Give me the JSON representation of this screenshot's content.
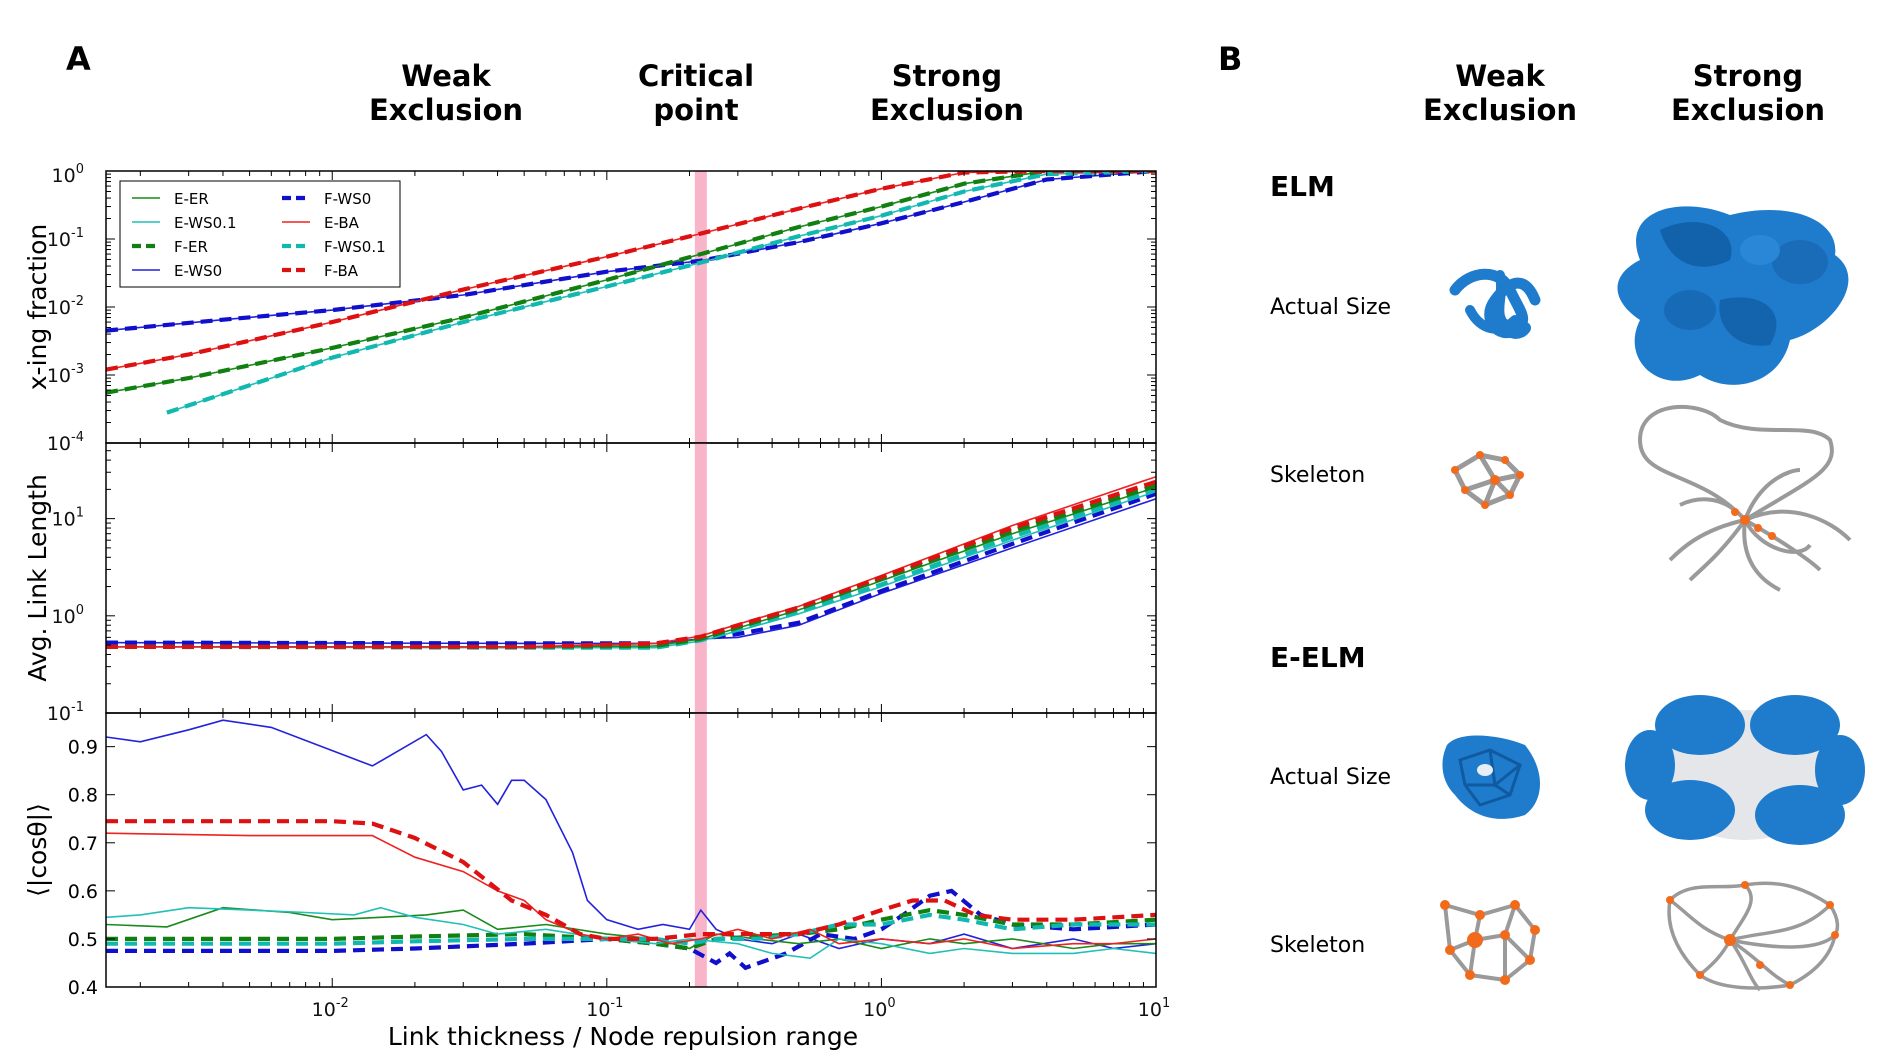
{
  "panel_labels": {
    "a": "A",
    "b": "B"
  },
  "regimes": [
    {
      "line1": "Weak",
      "line2": "Exclusion"
    },
    {
      "line1": "Critical",
      "line2": "point"
    },
    {
      "line1": "Strong",
      "line2": "Exclusion"
    }
  ],
  "panel_b": {
    "column_headers": [
      {
        "line1": "Weak",
        "line2": "Exclusion"
      },
      {
        "line1": "Strong",
        "line2": "Exclusion"
      }
    ],
    "sections": [
      {
        "title": "ELM",
        "rows": [
          "Actual Size",
          "Skeleton"
        ]
      },
      {
        "title": "E-ELM",
        "rows": [
          "Actual Size",
          "Skeleton"
        ]
      }
    ],
    "colors": {
      "tube": "#1f7ccc",
      "skeleton": "#9a9a9a",
      "node": "#f26a1b"
    }
  },
  "critical_point_x": 0.22,
  "chart_data": [
    {
      "type": "line",
      "ylabel": "x-ing fraction",
      "xscale": "log",
      "yscale": "log",
      "xlim": [
        0.0015,
        10
      ],
      "ylim": [
        0.0001,
        1
      ],
      "ytick_labels": [
        {
          "v": 1,
          "base": "10",
          "exp": "0"
        },
        {
          "v": 0.1,
          "base": "10",
          "exp": "-1"
        },
        {
          "v": 0.01,
          "base": "10",
          "exp": "-2"
        },
        {
          "v": 0.001,
          "base": "10",
          "exp": "-3"
        },
        {
          "v": 0.0001,
          "base": "10",
          "exp": "-4"
        }
      ],
      "legend": {
        "placement": "top-left",
        "entries": [
          "E-ER",
          "E-WS0.1",
          "F-ER",
          "E-WS0",
          "F-WS0",
          "E-BA",
          "F-WS0.1",
          "F-BA"
        ]
      },
      "series": [
        {
          "name": "E-WS0",
          "color": "#2222dd",
          "dashed": false,
          "x": [
            0.0015,
            0.004,
            0.01,
            0.03,
            0.1,
            0.22,
            0.5,
            1,
            2,
            4,
            10
          ],
          "y": [
            0.0045,
            0.0065,
            0.009,
            0.015,
            0.033,
            0.048,
            0.09,
            0.17,
            0.35,
            0.75,
            1
          ]
        },
        {
          "name": "F-WS0",
          "color": "#1010cc",
          "dashed": true,
          "x": [
            0.0015,
            0.004,
            0.01,
            0.03,
            0.1,
            0.22,
            0.5,
            1,
            2,
            4,
            10
          ],
          "y": [
            0.0045,
            0.0065,
            0.009,
            0.015,
            0.033,
            0.048,
            0.09,
            0.17,
            0.35,
            0.75,
            1
          ]
        },
        {
          "name": "E-ER",
          "color": "#1a8a1a",
          "dashed": false,
          "x": [
            0.0015,
            0.003,
            0.01,
            0.03,
            0.1,
            0.22,
            0.5,
            1,
            2,
            4,
            10
          ],
          "y": [
            0.00055,
            0.0009,
            0.0025,
            0.007,
            0.025,
            0.06,
            0.15,
            0.3,
            0.65,
            1,
            1
          ]
        },
        {
          "name": "F-ER",
          "color": "#118011",
          "dashed": true,
          "x": [
            0.0015,
            0.003,
            0.01,
            0.03,
            0.1,
            0.22,
            0.5,
            1,
            2,
            4,
            10
          ],
          "y": [
            0.00055,
            0.0009,
            0.0025,
            0.007,
            0.025,
            0.06,
            0.15,
            0.3,
            0.65,
            1,
            1
          ]
        },
        {
          "name": "E-WS0.1",
          "color": "#20c0b8",
          "dashed": false,
          "x": [
            0.0025,
            0.006,
            0.01,
            0.03,
            0.1,
            0.22,
            0.5,
            1,
            2,
            4,
            10
          ],
          "y": [
            0.00028,
            0.0009,
            0.0018,
            0.006,
            0.02,
            0.045,
            0.11,
            0.22,
            0.5,
            0.9,
            1
          ]
        },
        {
          "name": "F-WS0.1",
          "color": "#10b8b0",
          "dashed": true,
          "x": [
            0.0025,
            0.006,
            0.01,
            0.03,
            0.1,
            0.22,
            0.5,
            1,
            2,
            4,
            10
          ],
          "y": [
            0.00028,
            0.0009,
            0.0018,
            0.006,
            0.02,
            0.045,
            0.11,
            0.22,
            0.5,
            0.9,
            1
          ]
        },
        {
          "name": "E-BA",
          "color": "#ee2222",
          "dashed": false,
          "x": [
            0.0015,
            0.003,
            0.01,
            0.03,
            0.1,
            0.22,
            0.5,
            1,
            2,
            4,
            10
          ],
          "y": [
            0.0012,
            0.002,
            0.006,
            0.018,
            0.055,
            0.12,
            0.28,
            0.55,
            0.95,
            1,
            1
          ]
        },
        {
          "name": "F-BA",
          "color": "#dd1111",
          "dashed": true,
          "x": [
            0.0015,
            0.003,
            0.01,
            0.03,
            0.1,
            0.22,
            0.5,
            1,
            2,
            4,
            10
          ],
          "y": [
            0.0012,
            0.002,
            0.006,
            0.018,
            0.055,
            0.12,
            0.28,
            0.55,
            0.95,
            1,
            1
          ]
        }
      ]
    },
    {
      "type": "line",
      "ylabel": "Avg. Link Length",
      "xscale": "log",
      "yscale": "log",
      "xlim": [
        0.0015,
        10
      ],
      "ylim": [
        0.1,
        60
      ],
      "ytick_labels": [
        {
          "v": 10,
          "base": "10",
          "exp": "1"
        },
        {
          "v": 1,
          "base": "10",
          "exp": "0"
        },
        {
          "v": 0.1,
          "base": "10",
          "exp": "-1"
        }
      ],
      "series": [
        {
          "name": "E-WS0",
          "color": "#2222dd",
          "dashed": false,
          "x": [
            0.0015,
            0.05,
            0.15,
            0.22,
            0.3,
            0.5,
            1,
            3,
            10
          ],
          "y": [
            0.53,
            0.52,
            0.52,
            0.58,
            0.6,
            0.8,
            1.7,
            5,
            16
          ]
        },
        {
          "name": "F-WS0",
          "color": "#1010cc",
          "dashed": true,
          "x": [
            0.0015,
            0.05,
            0.15,
            0.22,
            0.3,
            0.5,
            1,
            3,
            10
          ],
          "y": [
            0.53,
            0.52,
            0.52,
            0.58,
            0.65,
            0.85,
            1.8,
            5.5,
            18
          ]
        },
        {
          "name": "E-WS0.1",
          "color": "#20c0b8",
          "dashed": false,
          "x": [
            0.0015,
            0.05,
            0.15,
            0.22,
            0.3,
            0.5,
            1,
            3,
            10
          ],
          "y": [
            0.48,
            0.47,
            0.47,
            0.55,
            0.7,
            1.05,
            2.0,
            6,
            19
          ]
        },
        {
          "name": "F-WS0.1",
          "color": "#10b8b0",
          "dashed": true,
          "x": [
            0.0015,
            0.05,
            0.15,
            0.22,
            0.3,
            0.5,
            1,
            3,
            10
          ],
          "y": [
            0.48,
            0.47,
            0.47,
            0.56,
            0.72,
            1.1,
            2.1,
            6.5,
            20
          ]
        },
        {
          "name": "E-ER",
          "color": "#1a8a1a",
          "dashed": false,
          "x": [
            0.0015,
            0.05,
            0.15,
            0.22,
            0.3,
            0.5,
            1,
            3,
            10
          ],
          "y": [
            0.48,
            0.48,
            0.49,
            0.58,
            0.75,
            1.15,
            2.3,
            7,
            21
          ]
        },
        {
          "name": "F-ER",
          "color": "#118011",
          "dashed": true,
          "x": [
            0.0015,
            0.05,
            0.15,
            0.22,
            0.3,
            0.5,
            1,
            3,
            10
          ],
          "y": [
            0.48,
            0.48,
            0.49,
            0.58,
            0.76,
            1.18,
            2.4,
            7.5,
            22
          ]
        },
        {
          "name": "E-BA",
          "color": "#ee2222",
          "dashed": false,
          "x": [
            0.0015,
            0.05,
            0.15,
            0.22,
            0.3,
            0.5,
            1,
            3,
            10
          ],
          "y": [
            0.48,
            0.48,
            0.52,
            0.62,
            0.82,
            1.25,
            2.6,
            8.5,
            27
          ]
        },
        {
          "name": "F-BA",
          "color": "#dd1111",
          "dashed": true,
          "x": [
            0.0015,
            0.05,
            0.15,
            0.22,
            0.3,
            0.5,
            1,
            3,
            10
          ],
          "y": [
            0.48,
            0.48,
            0.52,
            0.61,
            0.8,
            1.22,
            2.5,
            8,
            24
          ]
        }
      ]
    },
    {
      "type": "line",
      "ylabel": "⟨|cosθ|⟩",
      "xlabel": "Link thickness / Node repulsion range",
      "xscale": "log",
      "yscale": "linear",
      "xlim": [
        0.0015,
        10
      ],
      "ylim": [
        0.4,
        0.97
      ],
      "yticks": [
        "0.4",
        "0.5",
        "0.6",
        "0.7",
        "0.8",
        "0.9"
      ],
      "xtick_labels": [
        {
          "v": 0.01,
          "base": "10",
          "exp": "-2"
        },
        {
          "v": 0.1,
          "base": "10",
          "exp": "-1"
        },
        {
          "v": 1,
          "base": "10",
          "exp": "0"
        },
        {
          "v": 10,
          "base": "10",
          "exp": "1"
        }
      ],
      "series": [
        {
          "name": "E-WS0",
          "color": "#2222dd",
          "dashed": false,
          "x": [
            0.0015,
            0.002,
            0.003,
            0.004,
            0.006,
            0.014,
            0.022,
            0.025,
            0.03,
            0.035,
            0.04,
            0.045,
            0.05,
            0.06,
            0.075,
            0.085,
            0.1,
            0.13,
            0.16,
            0.2,
            0.22,
            0.25,
            0.3,
            0.4,
            0.5,
            0.7,
            1,
            1.5,
            2,
            3,
            5,
            7,
            10
          ],
          "y": [
            0.92,
            0.91,
            0.935,
            0.955,
            0.94,
            0.86,
            0.925,
            0.89,
            0.81,
            0.82,
            0.78,
            0.83,
            0.83,
            0.79,
            0.68,
            0.58,
            0.54,
            0.52,
            0.53,
            0.52,
            0.56,
            0.52,
            0.5,
            0.49,
            0.51,
            0.48,
            0.5,
            0.49,
            0.51,
            0.48,
            0.5,
            0.48,
            0.49
          ]
        },
        {
          "name": "F-WS0",
          "color": "#1010cc",
          "dashed": true,
          "x": [
            0.0015,
            0.005,
            0.01,
            0.02,
            0.05,
            0.1,
            0.15,
            0.2,
            0.25,
            0.28,
            0.32,
            0.45,
            0.6,
            0.8,
            1,
            1.2,
            1.5,
            1.8,
            2.3,
            3,
            5,
            10
          ],
          "y": [
            0.475,
            0.475,
            0.475,
            0.48,
            0.49,
            0.5,
            0.49,
            0.48,
            0.45,
            0.47,
            0.44,
            0.47,
            0.51,
            0.5,
            0.52,
            0.55,
            0.59,
            0.6,
            0.55,
            0.53,
            0.52,
            0.53
          ]
        },
        {
          "name": "E-ER",
          "color": "#1a8a1a",
          "dashed": false,
          "x": [
            0.0015,
            0.0025,
            0.004,
            0.007,
            0.01,
            0.015,
            0.022,
            0.03,
            0.04,
            0.06,
            0.1,
            0.15,
            0.2,
            0.25,
            0.35,
            0.5,
            0.7,
            1,
            1.5,
            2,
            3,
            5,
            7,
            10
          ],
          "y": [
            0.53,
            0.525,
            0.565,
            0.555,
            0.54,
            0.545,
            0.55,
            0.56,
            0.52,
            0.53,
            0.51,
            0.5,
            0.48,
            0.51,
            0.5,
            0.49,
            0.5,
            0.48,
            0.5,
            0.49,
            0.5,
            0.48,
            0.49,
            0.49
          ]
        },
        {
          "name": "F-ER",
          "color": "#118011",
          "dashed": true,
          "x": [
            0.0015,
            0.005,
            0.01,
            0.02,
            0.05,
            0.1,
            0.15,
            0.2,
            0.25,
            0.35,
            0.5,
            0.7,
            1,
            1.5,
            2,
            3,
            5,
            10
          ],
          "y": [
            0.5,
            0.5,
            0.5,
            0.505,
            0.51,
            0.5,
            0.49,
            0.48,
            0.5,
            0.505,
            0.51,
            0.52,
            0.54,
            0.56,
            0.55,
            0.53,
            0.53,
            0.54
          ]
        },
        {
          "name": "E-WS0.1",
          "color": "#20c0b8",
          "dashed": false,
          "x": [
            0.0015,
            0.002,
            0.003,
            0.005,
            0.008,
            0.012,
            0.015,
            0.02,
            0.03,
            0.04,
            0.06,
            0.1,
            0.15,
            0.2,
            0.3,
            0.4,
            0.55,
            0.7,
            1,
            1.5,
            2,
            3,
            5,
            7,
            10
          ],
          "y": [
            0.545,
            0.55,
            0.565,
            0.56,
            0.555,
            0.55,
            0.565,
            0.545,
            0.53,
            0.51,
            0.52,
            0.5,
            0.49,
            0.5,
            0.49,
            0.47,
            0.46,
            0.5,
            0.49,
            0.47,
            0.48,
            0.47,
            0.47,
            0.48,
            0.47
          ]
        },
        {
          "name": "F-WS0.1",
          "color": "#10b8b0",
          "dashed": true,
          "x": [
            0.0015,
            0.005,
            0.01,
            0.02,
            0.05,
            0.1,
            0.15,
            0.2,
            0.25,
            0.35,
            0.5,
            0.7,
            1,
            1.5,
            2,
            3,
            5,
            10
          ],
          "y": [
            0.49,
            0.49,
            0.49,
            0.495,
            0.5,
            0.5,
            0.5,
            0.49,
            0.5,
            0.5,
            0.51,
            0.53,
            0.53,
            0.55,
            0.54,
            0.52,
            0.53,
            0.53
          ]
        },
        {
          "name": "E-BA",
          "color": "#ee2222",
          "dashed": false,
          "x": [
            0.0015,
            0.005,
            0.01,
            0.014,
            0.02,
            0.03,
            0.04,
            0.05,
            0.06,
            0.08,
            0.1,
            0.13,
            0.17,
            0.22,
            0.3,
            0.4,
            0.55,
            0.7,
            1,
            1.5,
            2,
            3,
            5,
            7,
            10
          ],
          "y": [
            0.72,
            0.715,
            0.715,
            0.715,
            0.67,
            0.64,
            0.6,
            0.58,
            0.54,
            0.51,
            0.5,
            0.51,
            0.49,
            0.5,
            0.52,
            0.5,
            0.52,
            0.49,
            0.5,
            0.49,
            0.5,
            0.48,
            0.49,
            0.49,
            0.5
          ]
        },
        {
          "name": "F-BA",
          "color": "#dd1111",
          "dashed": true,
          "x": [
            0.0015,
            0.005,
            0.01,
            0.014,
            0.02,
            0.03,
            0.045,
            0.06,
            0.08,
            0.1,
            0.15,
            0.22,
            0.3,
            0.5,
            0.7,
            1,
            1.3,
            1.7,
            2.2,
            3,
            5,
            10
          ],
          "y": [
            0.745,
            0.745,
            0.745,
            0.74,
            0.71,
            0.66,
            0.58,
            0.55,
            0.51,
            0.5,
            0.5,
            0.51,
            0.51,
            0.51,
            0.53,
            0.56,
            0.58,
            0.58,
            0.55,
            0.54,
            0.54,
            0.55
          ]
        }
      ]
    }
  ]
}
